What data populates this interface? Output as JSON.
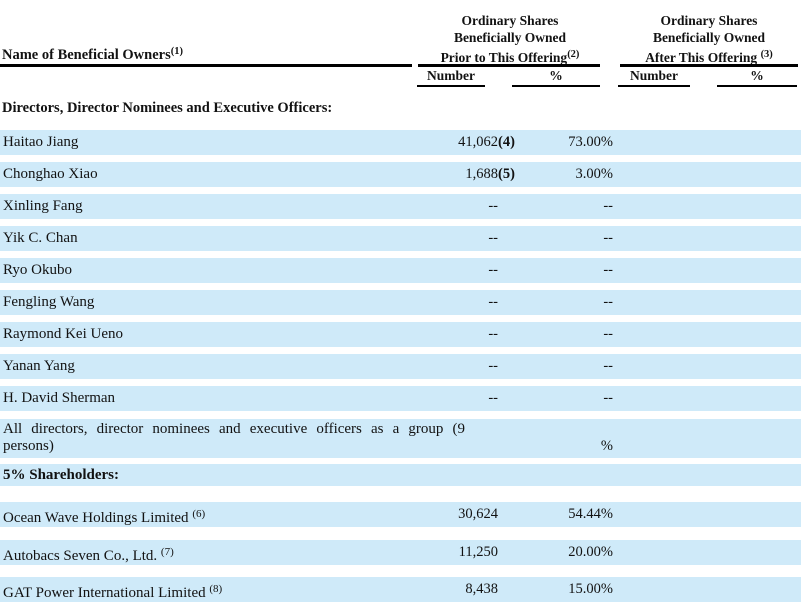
{
  "table": {
    "name_header": {
      "label": "Name of Beneficial Owners",
      "sup": "(1)"
    },
    "col_groups": [
      {
        "lines": [
          "Ordinary Shares",
          "Beneficially Owned",
          "Prior to This Offering"
        ],
        "sup": "(2)"
      },
      {
        "lines": [
          "Ordinary Shares",
          "Beneficially Owned",
          "After This Offering"
        ],
        "sup": "(3)"
      }
    ],
    "sub_headers": {
      "number": "Number",
      "percent": "%"
    },
    "sections": {
      "directors": "Directors, Director Nominees and Executive Officers:",
      "shareholders": "5% Shareholders:"
    },
    "director_rows": [
      {
        "name": "Haitao Jiang",
        "number": "41,062",
        "ref": "(4)",
        "percent": "73.00%"
      },
      {
        "name": "Chonghao Xiao",
        "number": "1,688",
        "ref": "(5)",
        "percent": "3.00%"
      },
      {
        "name": "Xinling Fang",
        "number": "--",
        "ref": "",
        "percent": "--"
      },
      {
        "name": "Yik C. Chan",
        "number": "--",
        "ref": "",
        "percent": "--"
      },
      {
        "name": "Ryo Okubo",
        "number": "--",
        "ref": "",
        "percent": "--"
      },
      {
        "name": "Fengling Wang",
        "number": "--",
        "ref": "",
        "percent": "--"
      },
      {
        "name": "Raymond Kei Ueno",
        "number": "--",
        "ref": "",
        "percent": "--"
      },
      {
        "name": "Yanan Yang",
        "number": "--",
        "ref": "",
        "percent": "--"
      },
      {
        "name": "H. David Sherman",
        "number": "--",
        "ref": "",
        "percent": "--"
      }
    ],
    "group_row": {
      "line1": "All directors, director nominees and executive officers as a group (9",
      "line2": "persons)",
      "percent": "%"
    },
    "shareholder_rows": [
      {
        "name": "Ocean Wave Holdings Limited ",
        "sup": "(6)",
        "number": "30,624",
        "percent": "54.44%"
      },
      {
        "name": "Autobacs Seven Co., Ltd. ",
        "sup": "(7)",
        "number": "11,250",
        "percent": "20.00%"
      },
      {
        "name": "GAT Power International Limited ",
        "sup": "(8)",
        "number": "8,438",
        "percent": "15.00%"
      }
    ]
  },
  "colors": {
    "stripe": "#cfeaf9",
    "rule": "#000000",
    "text": "#121212"
  }
}
